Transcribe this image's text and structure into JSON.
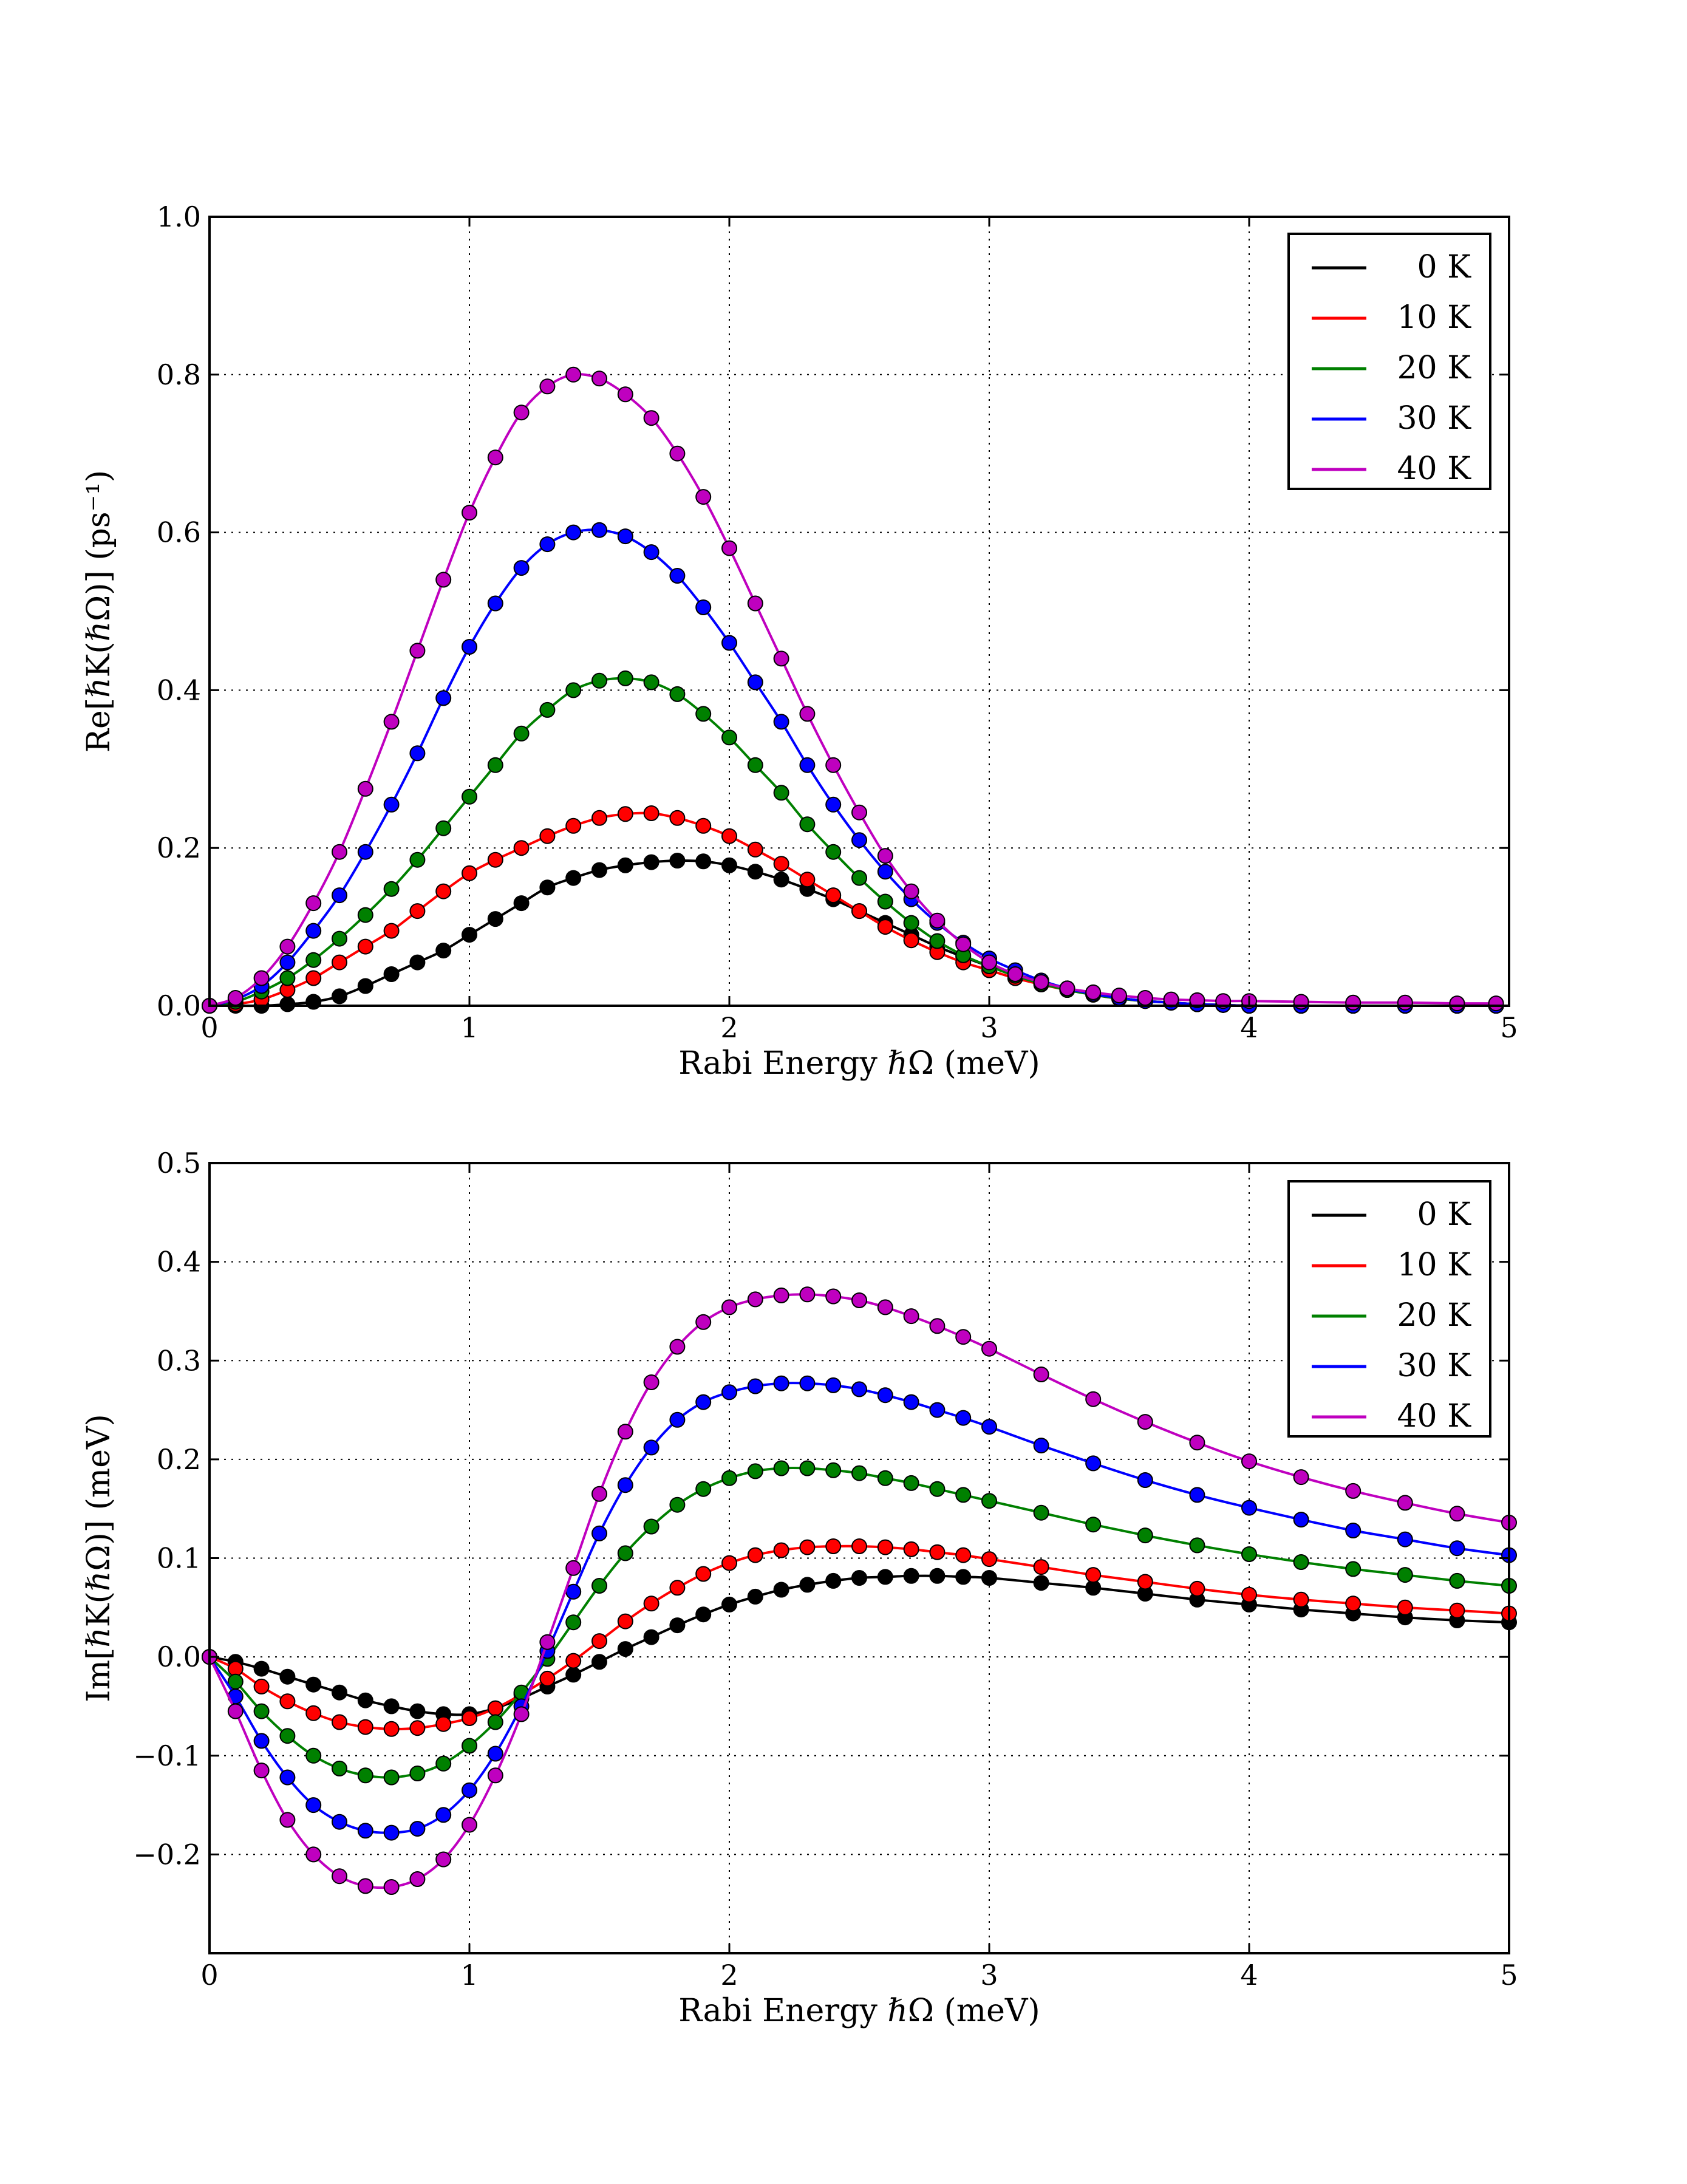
{
  "chart_data": [
    {
      "type": "line",
      "markers": true,
      "xlabel": "Rabi Energy ℏΩ (meV)",
      "ylabel": "Re[ℏK(ℏΩ)] (ps⁻¹)",
      "xlim": [
        0,
        5
      ],
      "ylim": [
        0,
        1.0
      ],
      "xticks": [
        "0",
        "1",
        "2",
        "3",
        "4",
        "5"
      ],
      "yticks": [
        "0.0",
        "0.2",
        "0.4",
        "0.6",
        "0.8",
        "1.0"
      ],
      "grid": true,
      "legend": "top-right",
      "x": [
        0,
        0.1,
        0.2,
        0.3,
        0.4,
        0.5,
        0.6,
        0.7,
        0.8,
        0.9,
        1.0,
        1.1,
        1.2,
        1.3,
        1.4,
        1.5,
        1.6,
        1.7,
        1.8,
        1.9,
        2.0,
        2.1,
        2.2,
        2.3,
        2.4,
        2.5,
        2.6,
        2.7,
        2.8,
        2.9,
        3.0,
        3.1,
        3.2,
        3.3,
        3.4,
        3.5,
        3.6,
        3.7,
        3.8,
        3.9,
        4.0,
        4.2,
        4.4,
        4.6,
        4.8,
        4.95
      ],
      "series": [
        {
          "name": "0 K",
          "color": "#000000",
          "values": [
            0,
            0,
            0,
            0.002,
            0.005,
            0.012,
            0.025,
            0.04,
            0.055,
            0.07,
            0.09,
            0.11,
            0.13,
            0.15,
            0.162,
            0.172,
            0.178,
            0.182,
            0.184,
            0.183,
            0.178,
            0.17,
            0.16,
            0.148,
            0.135,
            0.12,
            0.105,
            0.09,
            0.075,
            0.062,
            0.05,
            0.04,
            0.03,
            0.022,
            0.016,
            0.01,
            0.006,
            0.004,
            0.002,
            0.001,
            0,
            0,
            0,
            0,
            0,
            0
          ]
        },
        {
          "name": "10 K",
          "color": "#ff0000",
          "values": [
            0,
            0.002,
            0.008,
            0.02,
            0.035,
            0.055,
            0.075,
            0.095,
            0.12,
            0.145,
            0.168,
            0.185,
            0.2,
            0.215,
            0.228,
            0.238,
            0.243,
            0.244,
            0.238,
            0.228,
            0.215,
            0.198,
            0.18,
            0.16,
            0.14,
            0.12,
            0.1,
            0.083,
            0.068,
            0.055,
            0.045,
            0.035,
            0.027,
            0.02,
            0.014,
            0.009,
            0.006,
            0.004,
            0.002,
            0.001,
            0,
            0,
            0,
            0,
            0,
            0
          ]
        },
        {
          "name": "20 K",
          "color": "#008000",
          "values": [
            0,
            0.005,
            0.018,
            0.035,
            0.058,
            0.085,
            0.115,
            0.148,
            0.185,
            0.225,
            0.265,
            0.305,
            0.345,
            0.375,
            0.4,
            0.412,
            0.415,
            0.41,
            0.395,
            0.37,
            0.34,
            0.305,
            0.27,
            0.23,
            0.195,
            0.162,
            0.132,
            0.105,
            0.082,
            0.064,
            0.05,
            0.038,
            0.028,
            0.02,
            0.014,
            0.009,
            0.006,
            0.004,
            0.002,
            0.001,
            0,
            0,
            0,
            0,
            0,
            0
          ]
        },
        {
          "name": "30 K",
          "color": "#0000ff",
          "values": [
            0,
            0.008,
            0.025,
            0.055,
            0.095,
            0.14,
            0.195,
            0.255,
            0.32,
            0.39,
            0.455,
            0.51,
            0.555,
            0.585,
            0.6,
            0.603,
            0.595,
            0.575,
            0.545,
            0.505,
            0.46,
            0.41,
            0.36,
            0.305,
            0.255,
            0.21,
            0.17,
            0.135,
            0.105,
            0.08,
            0.06,
            0.045,
            0.032,
            0.022,
            0.015,
            0.01,
            0.006,
            0.004,
            0.002,
            0.001,
            0,
            0,
            0,
            0,
            0,
            0
          ]
        },
        {
          "name": "40 K",
          "color": "#bf00bf",
          "values": [
            0,
            0.01,
            0.035,
            0.075,
            0.13,
            0.195,
            0.275,
            0.36,
            0.45,
            0.54,
            0.625,
            0.695,
            0.752,
            0.785,
            0.8,
            0.795,
            0.775,
            0.745,
            0.7,
            0.645,
            0.58,
            0.51,
            0.44,
            0.37,
            0.305,
            0.245,
            0.19,
            0.145,
            0.108,
            0.078,
            0.055,
            0.04,
            0.03,
            0.022,
            0.017,
            0.013,
            0.01,
            0.008,
            0.007,
            0.006,
            0.006,
            0.005,
            0.004,
            0.004,
            0.003,
            0.003
          ]
        }
      ]
    },
    {
      "type": "line",
      "markers": true,
      "xlabel": "Rabi Energy ℏΩ (meV)",
      "ylabel": "Im[ℏK(ℏΩ)] (meV)",
      "xlim": [
        0,
        5
      ],
      "ylim": [
        -0.3,
        0.5
      ],
      "xticks": [
        "0",
        "1",
        "2",
        "3",
        "4",
        "5"
      ],
      "yticks": [
        "−0.2",
        "−0.1",
        "0.0",
        "0.1",
        "0.2",
        "0.3",
        "0.4",
        "0.5"
      ],
      "grid": true,
      "legend": "top-right",
      "x": [
        0,
        0.1,
        0.2,
        0.3,
        0.4,
        0.5,
        0.6,
        0.7,
        0.8,
        0.9,
        1.0,
        1.1,
        1.2,
        1.3,
        1.4,
        1.5,
        1.6,
        1.7,
        1.8,
        1.9,
        2.0,
        2.1,
        2.2,
        2.3,
        2.4,
        2.5,
        2.6,
        2.7,
        2.8,
        2.9,
        3.0,
        3.2,
        3.4,
        3.6,
        3.8,
        4.0,
        4.2,
        4.4,
        4.6,
        4.8,
        5.0
      ],
      "series": [
        {
          "name": "0 K",
          "color": "#000000",
          "values": [
            0,
            -0.005,
            -0.012,
            -0.02,
            -0.028,
            -0.036,
            -0.044,
            -0.05,
            -0.055,
            -0.058,
            -0.058,
            -0.052,
            -0.042,
            -0.03,
            -0.018,
            -0.005,
            0.008,
            0.02,
            0.032,
            0.043,
            0.053,
            0.061,
            0.068,
            0.073,
            0.077,
            0.08,
            0.081,
            0.082,
            0.082,
            0.081,
            0.08,
            0.075,
            0.07,
            0.064,
            0.058,
            0.053,
            0.048,
            0.044,
            0.04,
            0.037,
            0.035
          ]
        },
        {
          "name": "10 K",
          "color": "#ff0000",
          "values": [
            0,
            -0.012,
            -0.03,
            -0.045,
            -0.057,
            -0.066,
            -0.071,
            -0.073,
            -0.072,
            -0.068,
            -0.062,
            -0.052,
            -0.038,
            -0.022,
            -0.004,
            0.016,
            0.036,
            0.054,
            0.07,
            0.084,
            0.095,
            0.103,
            0.108,
            0.111,
            0.112,
            0.112,
            0.111,
            0.109,
            0.106,
            0.103,
            0.099,
            0.091,
            0.083,
            0.076,
            0.069,
            0.063,
            0.058,
            0.054,
            0.05,
            0.047,
            0.044
          ]
        },
        {
          "name": "20 K",
          "color": "#008000",
          "values": [
            0,
            -0.025,
            -0.055,
            -0.08,
            -0.1,
            -0.113,
            -0.12,
            -0.122,
            -0.118,
            -0.108,
            -0.09,
            -0.066,
            -0.036,
            -0.002,
            0.035,
            0.072,
            0.105,
            0.132,
            0.154,
            0.17,
            0.181,
            0.188,
            0.191,
            0.191,
            0.189,
            0.186,
            0.181,
            0.176,
            0.17,
            0.164,
            0.158,
            0.146,
            0.134,
            0.123,
            0.113,
            0.104,
            0.096,
            0.089,
            0.083,
            0.077,
            0.072
          ]
        },
        {
          "name": "30 K",
          "color": "#0000ff",
          "values": [
            0,
            -0.04,
            -0.085,
            -0.122,
            -0.15,
            -0.167,
            -0.176,
            -0.178,
            -0.174,
            -0.16,
            -0.135,
            -0.098,
            -0.05,
            0.006,
            0.066,
            0.125,
            0.174,
            0.212,
            0.24,
            0.258,
            0.268,
            0.274,
            0.277,
            0.277,
            0.275,
            0.271,
            0.265,
            0.258,
            0.25,
            0.242,
            0.233,
            0.214,
            0.196,
            0.179,
            0.164,
            0.151,
            0.139,
            0.128,
            0.119,
            0.11,
            0.103
          ]
        },
        {
          "name": "40 K",
          "color": "#bf00bf",
          "values": [
            0,
            -0.055,
            -0.115,
            -0.165,
            -0.2,
            -0.222,
            -0.232,
            -0.233,
            -0.225,
            -0.205,
            -0.17,
            -0.12,
            -0.058,
            0.015,
            0.09,
            0.165,
            0.228,
            0.278,
            0.314,
            0.339,
            0.354,
            0.362,
            0.366,
            0.367,
            0.365,
            0.361,
            0.354,
            0.345,
            0.335,
            0.324,
            0.312,
            0.286,
            0.261,
            0.238,
            0.217,
            0.198,
            0.182,
            0.168,
            0.156,
            0.145,
            0.136
          ]
        }
      ]
    }
  ]
}
